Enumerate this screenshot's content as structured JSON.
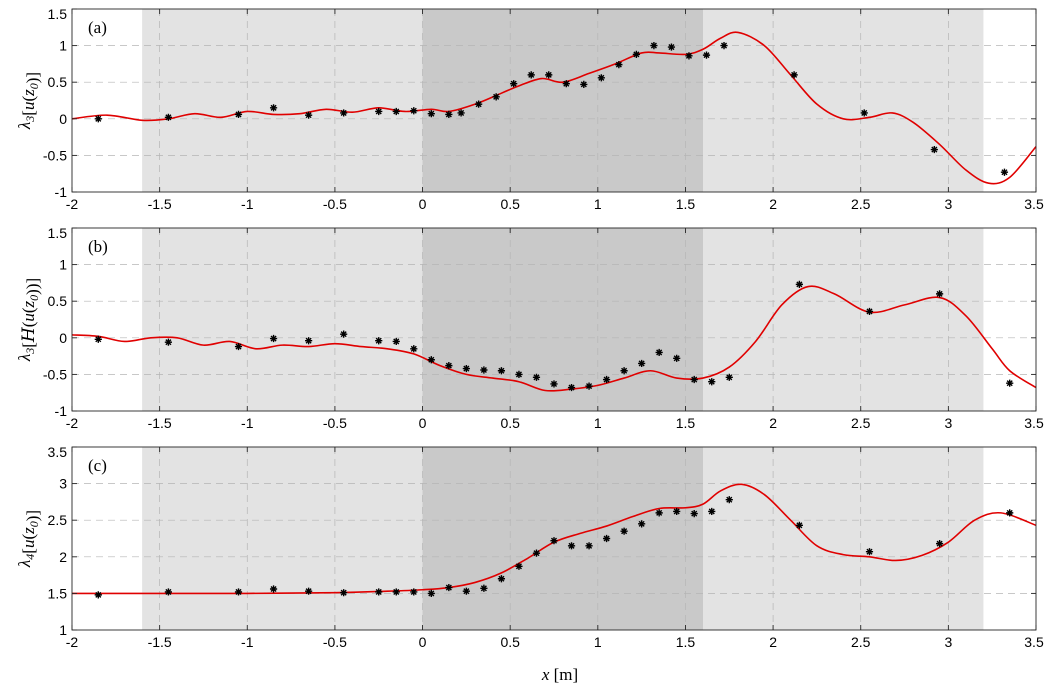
{
  "chart_data": [
    {
      "type": "line",
      "panel_label": "(a)",
      "ylabel": "λ3[u(z0)]",
      "xlim": [
        -2,
        3.5
      ],
      "ylim": [
        -1,
        1.5
      ],
      "xticks": [
        -2,
        -1.5,
        -1,
        -0.5,
        0,
        0.5,
        1,
        1.5,
        2,
        2.5,
        3,
        3.5
      ],
      "yticks": [
        -1,
        -0.5,
        0,
        0.5,
        1,
        1.5
      ],
      "grid": true,
      "shaded_regions": [
        {
          "x0": -1.6,
          "x1": 3.2,
          "color": "#e3e3e3"
        },
        {
          "x0": 0,
          "x1": 1.6,
          "color": "#c9c9c9"
        }
      ],
      "series": [
        {
          "style": "line",
          "color": "#e00000",
          "x": [
            -2,
            -1.8,
            -1.6,
            -1.45,
            -1.3,
            -1.15,
            -1.0,
            -0.85,
            -0.7,
            -0.55,
            -0.4,
            -0.25,
            -0.1,
            0.05,
            0.15,
            0.3,
            0.45,
            0.55,
            0.68,
            0.8,
            0.95,
            1.1,
            1.25,
            1.35,
            1.5,
            1.6,
            1.7,
            1.8,
            1.95,
            2.1,
            2.25,
            2.4,
            2.55,
            2.68,
            2.8,
            2.95,
            3.1,
            3.23,
            3.35,
            3.5
          ],
          "y": [
            0.0,
            0.05,
            -0.02,
            0.0,
            0.07,
            0.02,
            0.1,
            0.06,
            0.07,
            0.13,
            0.09,
            0.15,
            0.1,
            0.13,
            0.1,
            0.2,
            0.35,
            0.45,
            0.55,
            0.5,
            0.62,
            0.75,
            0.9,
            0.9,
            0.88,
            0.95,
            1.1,
            1.18,
            1.0,
            0.6,
            0.2,
            0.0,
            0.02,
            0.08,
            -0.05,
            -0.35,
            -0.7,
            -0.88,
            -0.8,
            -0.38
          ]
        },
        {
          "style": "markers",
          "color": "#000000",
          "x": [
            -1.85,
            -1.45,
            -1.05,
            -0.85,
            -0.65,
            -0.45,
            -0.25,
            -0.15,
            -0.05,
            0.05,
            0.15,
            0.22,
            0.32,
            0.42,
            0.52,
            0.62,
            0.72,
            0.82,
            0.92,
            1.02,
            1.12,
            1.22,
            1.32,
            1.42,
            1.52,
            1.62,
            1.72,
            2.12,
            2.52,
            2.92,
            3.32
          ],
          "y": [
            0.0,
            0.02,
            0.06,
            0.15,
            0.05,
            0.08,
            0.1,
            0.1,
            0.11,
            0.07,
            0.06,
            0.08,
            0.2,
            0.3,
            0.48,
            0.6,
            0.6,
            0.48,
            0.47,
            0.56,
            0.74,
            0.88,
            1.0,
            0.98,
            0.86,
            0.87,
            1.0,
            0.6,
            0.08,
            -0.42,
            -0.73
          ]
        }
      ]
    },
    {
      "type": "line",
      "panel_label": "(b)",
      "ylabel": "λ3[H(u(z0))]",
      "xlim": [
        -2,
        3.5
      ],
      "ylim": [
        -1,
        1.5
      ],
      "xticks": [
        -2,
        -1.5,
        -1,
        -0.5,
        0,
        0.5,
        1,
        1.5,
        2,
        2.5,
        3,
        3.5
      ],
      "yticks": [
        -1,
        -0.5,
        0,
        0.5,
        1,
        1.5
      ],
      "grid": true,
      "shaded_regions": [
        {
          "x0": -1.6,
          "x1": 3.2,
          "color": "#e3e3e3"
        },
        {
          "x0": 0,
          "x1": 1.6,
          "color": "#c9c9c9"
        }
      ],
      "series": [
        {
          "style": "line",
          "color": "#e00000",
          "x": [
            -2,
            -1.85,
            -1.7,
            -1.55,
            -1.4,
            -1.25,
            -1.1,
            -0.95,
            -0.8,
            -0.65,
            -0.5,
            -0.35,
            -0.2,
            -0.05,
            0.1,
            0.25,
            0.4,
            0.55,
            0.7,
            0.85,
            1.0,
            1.15,
            1.3,
            1.45,
            1.6,
            1.75,
            1.9,
            2.05,
            2.2,
            2.35,
            2.55,
            2.75,
            2.95,
            3.1,
            3.25,
            3.35,
            3.5
          ],
          "y": [
            0.04,
            0.02,
            -0.05,
            0.0,
            0.0,
            -0.1,
            -0.05,
            -0.15,
            -0.1,
            -0.12,
            -0.08,
            -0.12,
            -0.15,
            -0.22,
            -0.38,
            -0.5,
            -0.55,
            -0.6,
            -0.72,
            -0.7,
            -0.65,
            -0.55,
            -0.45,
            -0.55,
            -0.55,
            -0.4,
            -0.05,
            0.45,
            0.7,
            0.6,
            0.35,
            0.45,
            0.55,
            0.3,
            -0.15,
            -0.45,
            -0.68
          ]
        },
        {
          "style": "markers",
          "color": "#000000",
          "x": [
            -1.85,
            -1.45,
            -1.05,
            -0.85,
            -0.65,
            -0.45,
            -0.25,
            -0.15,
            -0.05,
            0.05,
            0.15,
            0.25,
            0.35,
            0.45,
            0.55,
            0.65,
            0.75,
            0.85,
            0.95,
            1.05,
            1.15,
            1.25,
            1.35,
            1.45,
            1.55,
            1.65,
            1.75,
            2.15,
            2.55,
            2.95,
            3.35
          ],
          "y": [
            -0.02,
            -0.06,
            -0.12,
            -0.01,
            -0.04,
            0.05,
            -0.04,
            -0.05,
            -0.15,
            -0.3,
            -0.38,
            -0.42,
            -0.44,
            -0.45,
            -0.5,
            -0.54,
            -0.63,
            -0.68,
            -0.66,
            -0.57,
            -0.45,
            -0.35,
            -0.2,
            -0.28,
            -0.57,
            -0.6,
            -0.54,
            0.73,
            0.36,
            0.6,
            -0.62
          ]
        }
      ]
    },
    {
      "type": "line",
      "panel_label": "(c)",
      "ylabel": "λ4[u(z0)]",
      "xlabel": "x [m]",
      "xlim": [
        -2,
        3.5
      ],
      "ylim": [
        1,
        3.5
      ],
      "xticks": [
        -2,
        -1.5,
        -1,
        -0.5,
        0,
        0.5,
        1,
        1.5,
        2,
        2.5,
        3,
        3.5
      ],
      "yticks": [
        1,
        1.5,
        2,
        2.5,
        3,
        3.5
      ],
      "grid": true,
      "shaded_regions": [
        {
          "x0": -1.6,
          "x1": 3.2,
          "color": "#e3e3e3"
        },
        {
          "x0": 0,
          "x1": 1.6,
          "color": "#c9c9c9"
        }
      ],
      "series": [
        {
          "style": "line",
          "color": "#e00000",
          "x": [
            -2,
            -1.5,
            -1.0,
            -0.5,
            -0.2,
            0.0,
            0.15,
            0.3,
            0.45,
            0.6,
            0.75,
            0.9,
            1.05,
            1.2,
            1.35,
            1.5,
            1.6,
            1.7,
            1.82,
            1.95,
            2.1,
            2.25,
            2.4,
            2.55,
            2.7,
            2.85,
            3.0,
            3.15,
            3.3,
            3.5
          ],
          "y": [
            1.5,
            1.5,
            1.5,
            1.51,
            1.53,
            1.55,
            1.58,
            1.65,
            1.78,
            1.98,
            2.2,
            2.32,
            2.42,
            2.55,
            2.66,
            2.67,
            2.72,
            2.9,
            2.99,
            2.85,
            2.5,
            2.15,
            2.03,
            2.0,
            1.95,
            2.02,
            2.2,
            2.5,
            2.6,
            2.43
          ]
        },
        {
          "style": "markers",
          "color": "#000000",
          "x": [
            -1.85,
            -1.45,
            -1.05,
            -0.85,
            -0.65,
            -0.45,
            -0.25,
            -0.15,
            -0.05,
            0.05,
            0.15,
            0.25,
            0.35,
            0.45,
            0.55,
            0.65,
            0.75,
            0.85,
            0.95,
            1.05,
            1.15,
            1.25,
            1.35,
            1.45,
            1.55,
            1.65,
            1.75,
            2.15,
            2.55,
            2.95,
            3.35
          ],
          "y": [
            1.48,
            1.52,
            1.52,
            1.56,
            1.53,
            1.51,
            1.52,
            1.52,
            1.52,
            1.5,
            1.58,
            1.53,
            1.57,
            1.7,
            1.87,
            2.05,
            2.22,
            2.15,
            2.15,
            2.25,
            2.35,
            2.45,
            2.6,
            2.62,
            2.59,
            2.62,
            2.78,
            2.43,
            2.07,
            2.18,
            2.6
          ]
        }
      ]
    }
  ]
}
